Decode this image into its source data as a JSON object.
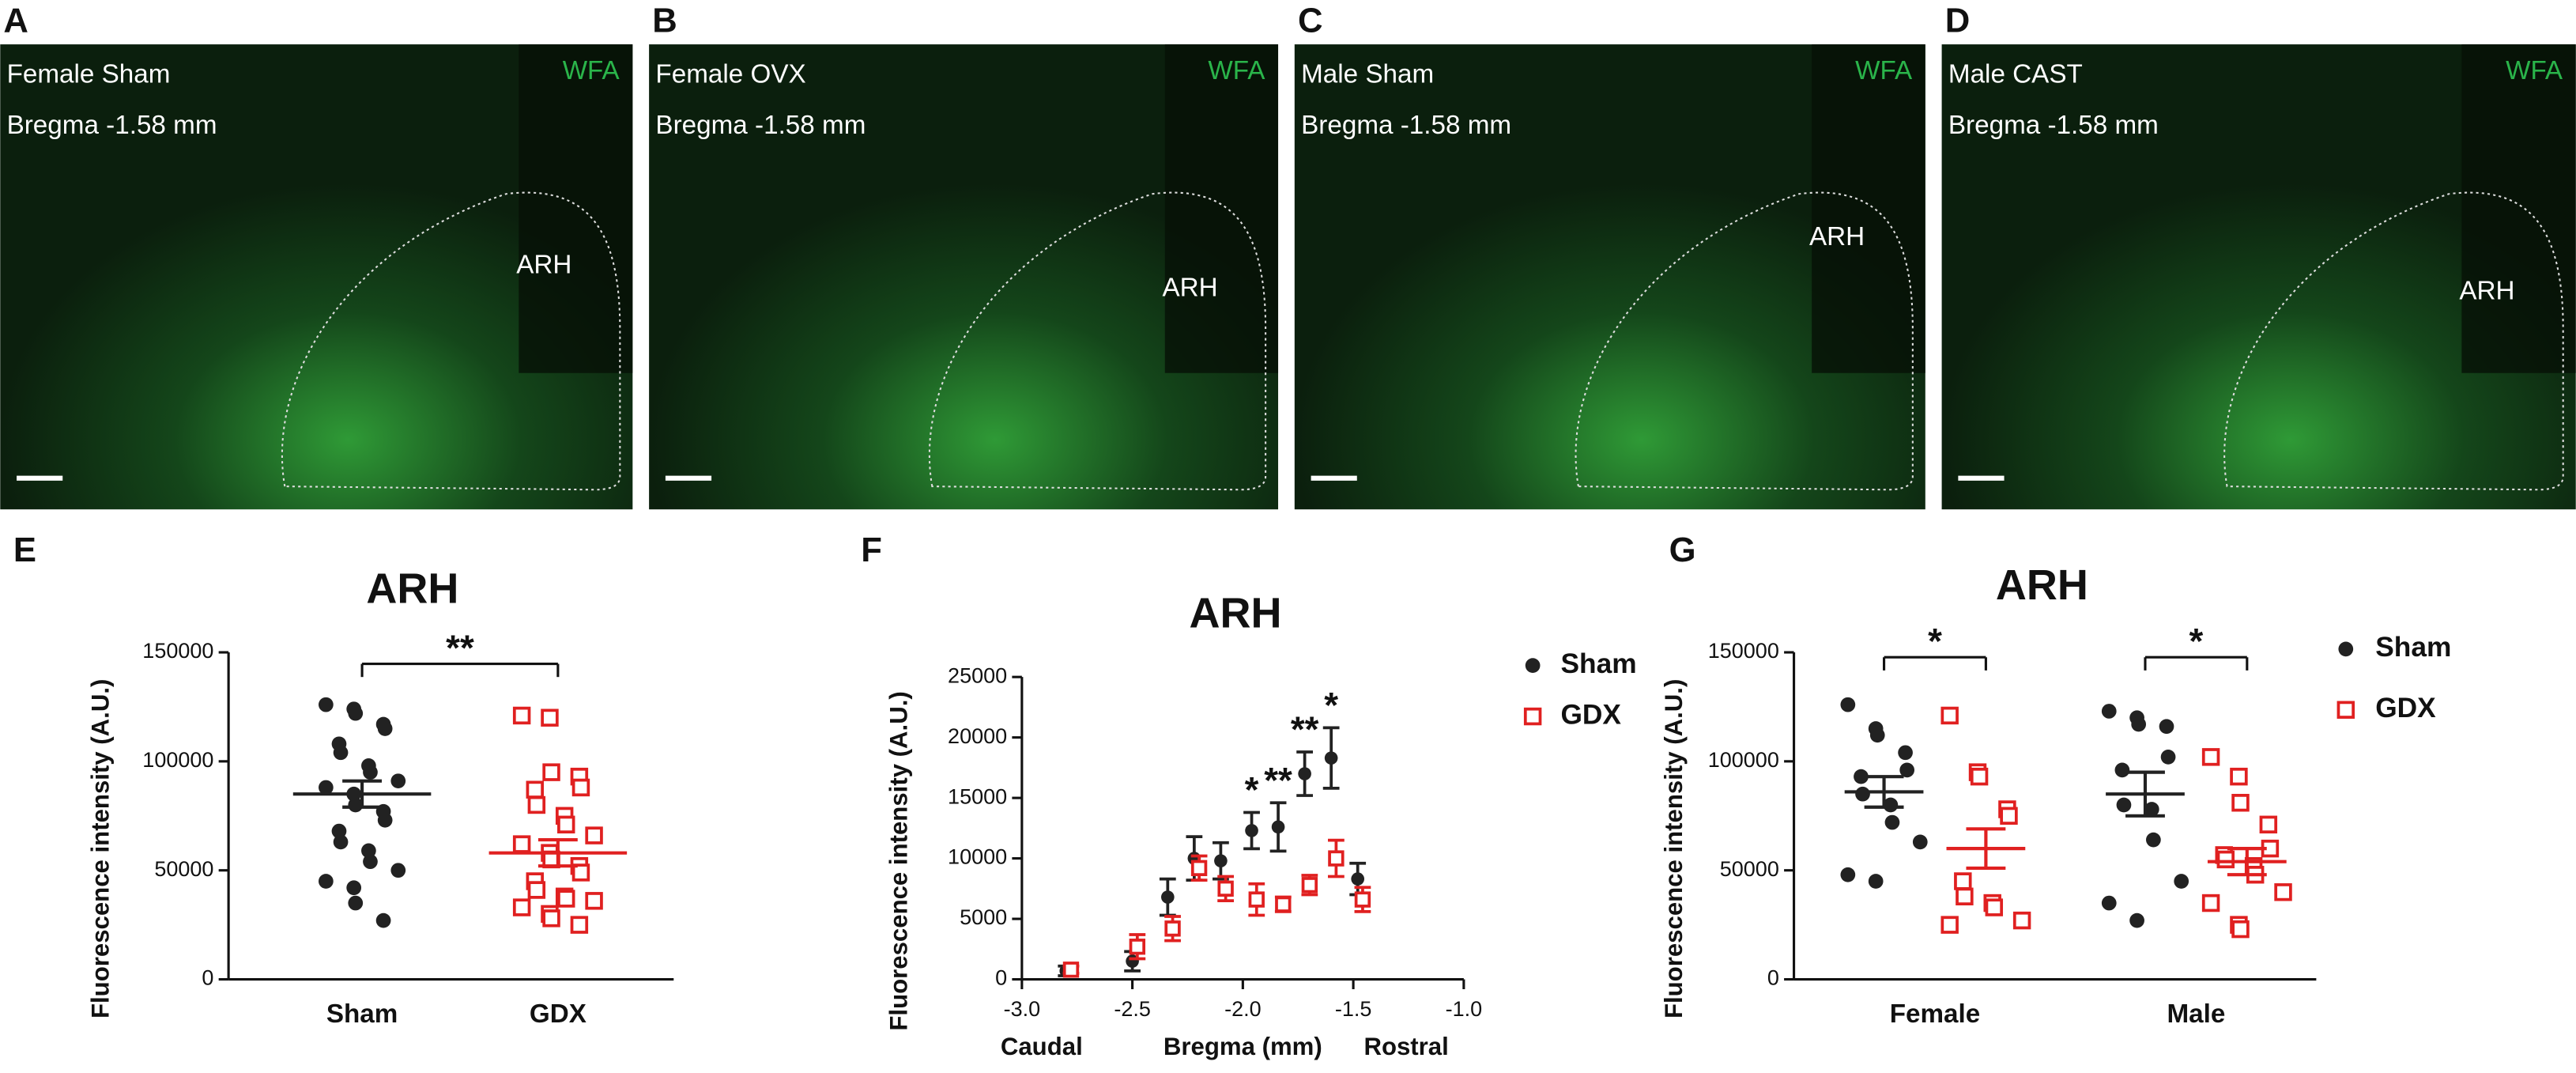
{
  "panels": [
    {
      "letter": "A",
      "title": "Female Sham",
      "bregma": "Bregma -1.58 mm",
      "stain": "WFA",
      "region": "ARH"
    },
    {
      "letter": "B",
      "title": "Female OVX",
      "bregma": "Bregma -1.58 mm",
      "stain": "WFA",
      "region": "ARH"
    },
    {
      "letter": "C",
      "title": "Male Sham",
      "bregma": "Bregma -1.58 mm",
      "stain": "WFA",
      "region": "ARH"
    },
    {
      "letter": "D",
      "title": "Male CAST",
      "bregma": "Bregma -1.58 mm",
      "stain": "WFA",
      "region": "ARH"
    }
  ],
  "chart_data": [
    {
      "type": "dot_plot",
      "panel_label": "E",
      "title": "ARH",
      "ylabel": "Fluorescence intensity (A.U.)",
      "categories": [
        "Sham",
        "GDX"
      ],
      "colors": [
        "#222222",
        "#e02020"
      ],
      "markers": [
        "circle",
        "square"
      ],
      "values": [
        [
          126000,
          124000,
          122000,
          117000,
          115000,
          108000,
          104000,
          98000,
          95000,
          91000,
          88000,
          85000,
          80000,
          77000,
          73000,
          68000,
          63000,
          59000,
          54000,
          50000,
          45000,
          42000,
          35000,
          27000
        ],
        [
          121000,
          120000,
          95000,
          93000,
          88000,
          87000,
          80000,
          75000,
          71000,
          66000,
          62000,
          58000,
          55000,
          52000,
          49000,
          45000,
          41000,
          38000,
          37000,
          36000,
          33000,
          30000,
          28000,
          25000
        ]
      ],
      "means": [
        85000,
        58000
      ],
      "sems": [
        6000,
        6000
      ],
      "significance": "**",
      "ylim": [
        0,
        150000
      ],
      "yticks": [
        0,
        50000,
        100000,
        150000
      ]
    },
    {
      "type": "scatter",
      "panel_label": "F",
      "title": "ARH",
      "ylabel": "Fluorescence intensity (A.U.)",
      "xlabel": "Bregma (mm)",
      "x_left_label": "Caudal",
      "x_right_label": "Rostral",
      "x": [
        -2.8,
        -2.5,
        -2.34,
        -2.22,
        -2.1,
        -1.96,
        -1.84,
        -1.72,
        -1.6,
        -1.48
      ],
      "series": [
        {
          "name": "Sham",
          "color": "#222222",
          "marker": "circle",
          "values": [
            700,
            1500,
            6800,
            10000,
            9800,
            12300,
            12600,
            17000,
            18300,
            8300
          ],
          "errors": [
            400,
            800,
            1500,
            1800,
            1500,
            1500,
            2000,
            1800,
            2500,
            1300
          ]
        },
        {
          "name": "GDX",
          "color": "#e02020",
          "marker": "square",
          "values": [
            800,
            2700,
            4200,
            9200,
            7500,
            6600,
            6200,
            7800,
            10000,
            6600
          ],
          "errors": [
            300,
            1000,
            1000,
            1000,
            1000,
            1300,
            600,
            800,
            1500,
            1000
          ]
        }
      ],
      "significance": [
        null,
        null,
        null,
        null,
        null,
        "*",
        "**",
        "**",
        "*",
        null
      ],
      "xlim": [
        -3,
        -1
      ],
      "xticks": [
        {
          "value": -3,
          "label": "-3.0"
        },
        -2.5,
        {
          "value": -2,
          "label": "-2.0"
        },
        -1.5,
        {
          "value": -1,
          "label": "-1.0"
        }
      ],
      "ylim": [
        0,
        25000
      ],
      "yticks": [
        0,
        5000,
        10000,
        15000,
        20000,
        25000
      ]
    },
    {
      "type": "grouped_dot_plot",
      "panel_label": "G",
      "title": "ARH",
      "ylabel": "Fluorescence intensity (A.U.)",
      "categories": [
        "Female",
        "Male"
      ],
      "series": [
        {
          "name": "Sham",
          "color": "#222222",
          "marker": "circle",
          "values": [
            [
              126000,
              115000,
              112000,
              104000,
              96000,
              93000,
              85000,
              80000,
              72000,
              63000,
              48000,
              45000
            ],
            [
              123000,
              120000,
              117000,
              116000,
              102000,
              96000,
              80000,
              78000,
              64000,
              45000,
              35000,
              27000
            ]
          ],
          "means": [
            86000,
            85000
          ],
          "sems": [
            7000,
            10000
          ]
        },
        {
          "name": "GDX",
          "color": "#e02020",
          "marker": "square",
          "values": [
            [
              121000,
              95000,
              93000,
              78000,
              75000,
              45000,
              38000,
              35000,
              33000,
              27000,
              25000
            ],
            [
              102000,
              93000,
              81000,
              71000,
              60000,
              57000,
              55000,
              52000,
              48000,
              40000,
              35000,
              25000,
              23000
            ]
          ],
          "means": [
            60000,
            54000
          ],
          "sems": [
            9000,
            6000
          ]
        }
      ],
      "significance": [
        "*",
        "*"
      ],
      "ylim": [
        0,
        150000
      ],
      "yticks": [
        0,
        50000,
        100000,
        150000
      ]
    }
  ]
}
